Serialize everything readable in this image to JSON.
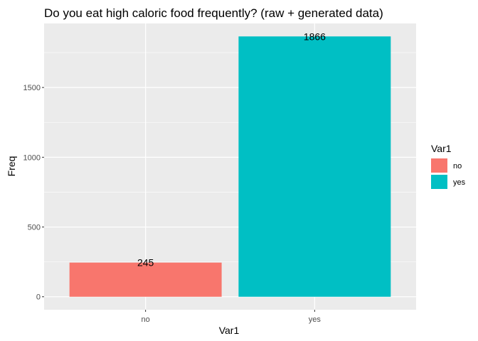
{
  "chart_data": {
    "type": "bar",
    "title": "Do you eat high caloric food frequently? (raw + generated data)",
    "xlabel": "Var1",
    "ylabel": "Freq",
    "categories": [
      "no",
      "yes"
    ],
    "values": [
      245,
      1866
    ],
    "data_labels": [
      "245",
      "1866"
    ],
    "ylim": [
      -93,
      1959
    ],
    "yticks": [
      0,
      500,
      1000,
      1500
    ],
    "ytick_labels": [
      "0",
      "500",
      "1000",
      "1500"
    ],
    "grid": true,
    "legend": {
      "title": "Var1",
      "placement": "right",
      "entries": [
        "no",
        "yes"
      ]
    },
    "colors": {
      "no": "#F8766D",
      "yes": "#00BFC4",
      "panel_background": "#EBEBEB",
      "grid": "#FFFFFF"
    }
  }
}
